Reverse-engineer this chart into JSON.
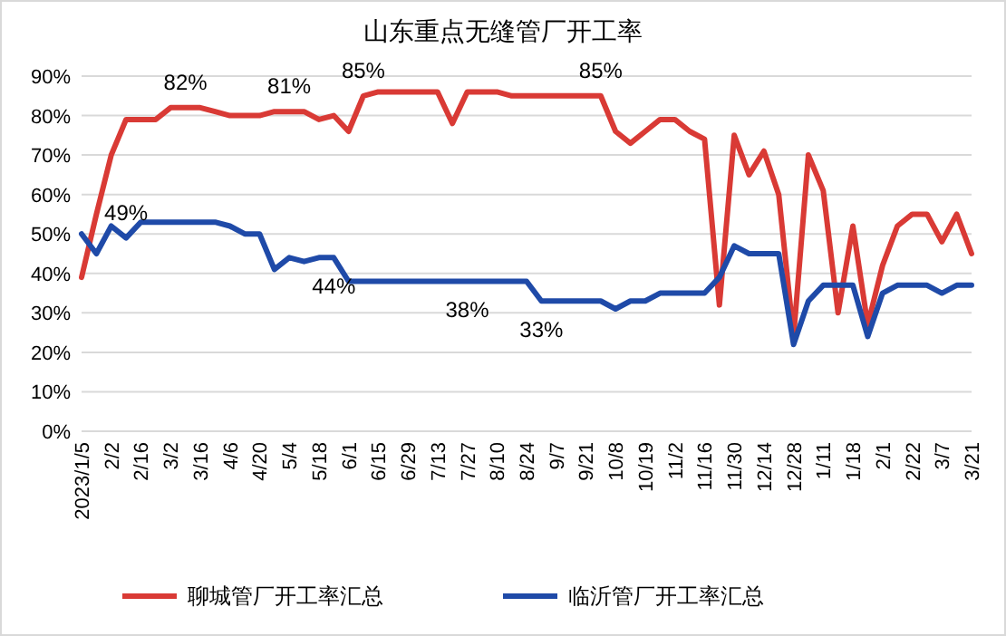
{
  "chart_data": {
    "type": "line",
    "title": "山东重点无缝管厂开工率",
    "categories": [
      "2023/1/5",
      null,
      "2/2",
      null,
      "2/16",
      null,
      "3/2",
      null,
      "3/16",
      null,
      "4/6",
      null,
      "4/20",
      null,
      "5/4",
      null,
      "5/18",
      null,
      "6/1",
      null,
      "6/15",
      null,
      "6/29",
      null,
      "7/13",
      null,
      "7/27",
      null,
      "8/10",
      null,
      "8/24",
      null,
      "9/7",
      null,
      "9/21",
      null,
      "10/8",
      null,
      "10/19",
      null,
      "11/2",
      null,
      "11/16",
      null,
      "11/30",
      null,
      "12/14",
      null,
      "12/28",
      null,
      "1/11",
      null,
      "1/18",
      null,
      "2/1",
      null,
      "2/22",
      null,
      "3/7",
      null,
      "3/21"
    ],
    "series": [
      {
        "name": "聊城管厂开工率汇总",
        "color": "#d93a35",
        "values": [
          39,
          55,
          70,
          79,
          79,
          79,
          82,
          82,
          82,
          81,
          80,
          80,
          80,
          81,
          81,
          81,
          79,
          80,
          76,
          85,
          86,
          86,
          86,
          86,
          86,
          78,
          86,
          86,
          86,
          85,
          85,
          85,
          85,
          85,
          85,
          85,
          76,
          73,
          76,
          79,
          79,
          76,
          74,
          32,
          75,
          65,
          71,
          60,
          24,
          70,
          61,
          30,
          52,
          27,
          42,
          52,
          55,
          55,
          48,
          55,
          45
        ],
        "value_labels": [
          null,
          null,
          null,
          null,
          null,
          null,
          null,
          "82%",
          null,
          null,
          null,
          null,
          null,
          null,
          "81%",
          null,
          null,
          null,
          null,
          "85%",
          null,
          null,
          null,
          null,
          null,
          null,
          null,
          null,
          null,
          null,
          null,
          null,
          null,
          null,
          null,
          "85%",
          null,
          null,
          null,
          null,
          null,
          null,
          null,
          null,
          null,
          null,
          null,
          null,
          null,
          null,
          null,
          null,
          null,
          null,
          null,
          null,
          null,
          null,
          null,
          null,
          null
        ]
      },
      {
        "name": "临沂管厂开工率汇总",
        "color": "#1f4aa8",
        "values": [
          50,
          45,
          52,
          49,
          53,
          53,
          53,
          53,
          53,
          53,
          52,
          50,
          50,
          41,
          44,
          43,
          44,
          44,
          38,
          38,
          38,
          38,
          38,
          38,
          38,
          38,
          38,
          38,
          38,
          38,
          38,
          33,
          33,
          33,
          33,
          33,
          31,
          33,
          33,
          35,
          35,
          35,
          35,
          39,
          47,
          45,
          45,
          45,
          22,
          33,
          37,
          37,
          37,
          24,
          35,
          37,
          37,
          37,
          35,
          37,
          37
        ],
        "value_labels": [
          null,
          null,
          null,
          "49%",
          null,
          null,
          null,
          null,
          null,
          null,
          null,
          null,
          null,
          null,
          null,
          null,
          null,
          "44%",
          null,
          null,
          null,
          null,
          null,
          null,
          null,
          null,
          "38%",
          null,
          null,
          null,
          null,
          "33%",
          null,
          null,
          null,
          null,
          null,
          null,
          null,
          null,
          null,
          null,
          null,
          null,
          null,
          null,
          null,
          null,
          null,
          null,
          null,
          null,
          null,
          null,
          null,
          null,
          null,
          null,
          null,
          null,
          null
        ]
      }
    ],
    "ylim": [
      0,
      90
    ],
    "yticks": [
      {
        "value": 0,
        "label": "0%"
      },
      {
        "value": 10,
        "label": "10%"
      },
      {
        "value": 20,
        "label": "20%"
      },
      {
        "value": 30,
        "label": "30%"
      },
      {
        "value": 40,
        "label": "40%"
      },
      {
        "value": 50,
        "label": "50%"
      },
      {
        "value": 60,
        "label": "60%"
      },
      {
        "value": 70,
        "label": "70%"
      },
      {
        "value": 80,
        "label": "80%"
      },
      {
        "value": 90,
        "label": "90%"
      }
    ],
    "grid": "y",
    "legend": "bottom",
    "marker": "none",
    "line_style": "solid"
  }
}
